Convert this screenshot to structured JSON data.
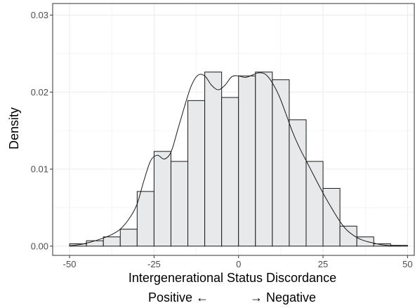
{
  "chart_data": {
    "type": "histogram",
    "xlabel": "Intergenerational Status Discordance",
    "ylabel": "Density",
    "direction_left": "Positive ←",
    "direction_right": "→ Negative",
    "xlim": [
      -55,
      52
    ],
    "ylim": [
      -0.0012,
      0.0315
    ],
    "x_ticks": [
      -50,
      -25,
      0,
      25,
      50
    ],
    "x_tick_labels": [
      "-50",
      "-25",
      "0",
      "25",
      "50"
    ],
    "y_ticks": [
      0.0,
      0.01,
      0.02,
      0.03
    ],
    "y_tick_labels": [
      "0.00",
      "0.01",
      "0.02",
      "0.03"
    ],
    "grid": true,
    "bin_width": 5,
    "bins": [
      {
        "x0": -50,
        "x1": -45,
        "density": 0.0003
      },
      {
        "x0": -45,
        "x1": -40,
        "density": 0.0007
      },
      {
        "x0": -40,
        "x1": -35,
        "density": 0.0012
      },
      {
        "x0": -35,
        "x1": -30,
        "density": 0.0022
      },
      {
        "x0": -30,
        "x1": -25,
        "density": 0.0071
      },
      {
        "x0": -25,
        "x1": -20,
        "density": 0.0123
      },
      {
        "x0": -20,
        "x1": -15,
        "density": 0.011
      },
      {
        "x0": -15,
        "x1": -10,
        "density": 0.0189
      },
      {
        "x0": -10,
        "x1": -5,
        "density": 0.0226
      },
      {
        "x0": -5,
        "x1": 0,
        "density": 0.0193
      },
      {
        "x0": 0,
        "x1": 5,
        "density": 0.0221
      },
      {
        "x0": 5,
        "x1": 10,
        "density": 0.0226
      },
      {
        "x0": 10,
        "x1": 15,
        "density": 0.0216
      },
      {
        "x0": 15,
        "x1": 20,
        "density": 0.0164
      },
      {
        "x0": 20,
        "x1": 25,
        "density": 0.011
      },
      {
        "x0": 25,
        "x1": 30,
        "density": 0.0075
      },
      {
        "x0": 30,
        "x1": 35,
        "density": 0.0026
      },
      {
        "x0": 35,
        "x1": 40,
        "density": 0.0012
      },
      {
        "x0": 40,
        "x1": 45,
        "density": 0.0003
      },
      {
        "x0": 45,
        "x1": 50,
        "density": 0.0001
      }
    ],
    "density_curve": {
      "x": [
        -50,
        -47,
        -44,
        -41,
        -38,
        -35,
        -32,
        -30,
        -28,
        -26,
        -24,
        -22,
        -20,
        -18,
        -16,
        -14,
        -12,
        -10,
        -8,
        -6,
        -4,
        -2,
        0,
        2,
        4,
        6,
        8,
        10,
        12,
        14,
        16,
        18,
        20,
        22,
        24,
        26,
        28,
        30,
        32,
        34,
        36,
        38,
        40,
        42,
        44,
        46,
        48
      ],
      "y": [
        5e-05,
        0.0002,
        0.0005,
        0.0009,
        0.0014,
        0.0022,
        0.0038,
        0.0055,
        0.0085,
        0.0111,
        0.0118,
        0.0113,
        0.0122,
        0.0151,
        0.0181,
        0.0208,
        0.0222,
        0.0221,
        0.0209,
        0.0203,
        0.0209,
        0.022,
        0.0221,
        0.0219,
        0.0222,
        0.0225,
        0.0223,
        0.0212,
        0.0195,
        0.0172,
        0.0148,
        0.0128,
        0.0111,
        0.0094,
        0.0077,
        0.0061,
        0.0046,
        0.0032,
        0.0021,
        0.0014,
        0.0009,
        0.0006,
        0.0004,
        0.0002,
        0.0001,
        4e-05,
        2e-05
      ]
    },
    "colors": {
      "bar_fill": "#e8e9eb",
      "bar_stroke": "#1a1a1a",
      "curve": "#1a1a1a",
      "grid": "#ebebeb",
      "panel_border": "#333333",
      "background": "#ffffff"
    }
  }
}
